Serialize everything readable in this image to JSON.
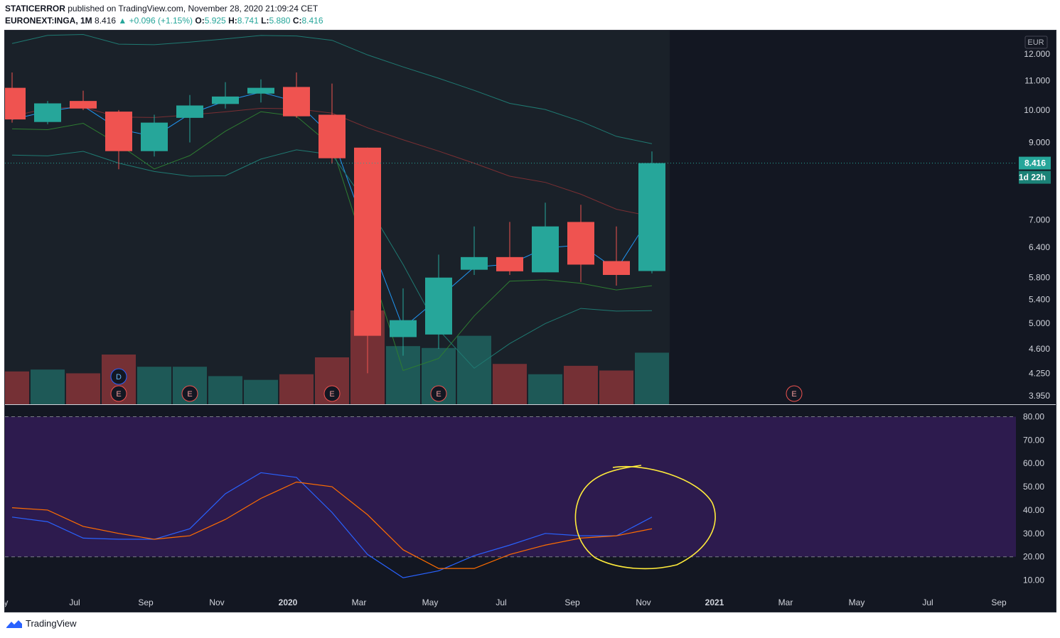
{
  "header": {
    "publisher": "STATICERROR",
    "published_text": "published on TradingView.com, November 28, 2020 21:09:24 CET",
    "symbol": "EURONEXT:INGA, 1M",
    "last": "8.416",
    "change": "▲ +0.096 (+1.15%)",
    "o_label": "O:",
    "o_value": "5.925",
    "h_label": "H:",
    "h_value": "8.741",
    "l_label": "L:",
    "l_value": "5.880",
    "c_label": "C:",
    "c_value": "8.416"
  },
  "price_axis": {
    "currency": "EUR",
    "ticks": [
      "12.000",
      "11.000",
      "10.000",
      "9.000",
      "7.000",
      "6.400",
      "5.800",
      "5.400",
      "5.000",
      "4.600",
      "4.250",
      "3.950"
    ],
    "tick_values": [
      12.0,
      11.0,
      10.0,
      9.0,
      7.0,
      6.4,
      5.8,
      5.4,
      5.0,
      4.6,
      4.25,
      3.95
    ],
    "last_price_label": "8.416",
    "countdown_label": "1d 22h"
  },
  "rsi_axis": {
    "ticks": [
      "80.00",
      "70.00",
      "60.00",
      "50.00",
      "40.00",
      "30.00",
      "20.00",
      "10.00"
    ],
    "tick_values": [
      80,
      70,
      60,
      50,
      40,
      30,
      20,
      10
    ]
  },
  "time_axis": {
    "labels": [
      "ay",
      "Jul",
      "Sep",
      "Nov",
      "2020",
      "Mar",
      "May",
      "Jul",
      "Sep",
      "Nov",
      "2021",
      "Mar",
      "May",
      "Jul",
      "Sep"
    ]
  },
  "event_markers": {
    "earnings": "E",
    "dividend": "D"
  },
  "footer": {
    "brand": "TradingView"
  },
  "colors": {
    "up": "#26a69a",
    "down": "#ef5350",
    "background": "#131722",
    "rsi_band": "#2d1b4e",
    "rsi_line": "#2962ff",
    "rsi_signal": "#ff6d00",
    "annotation": "#ffeb3b"
  },
  "chart_data": [
    {
      "type": "candlestick",
      "scale": "log",
      "currency": "EUR",
      "ylim": [
        3.95,
        12.0
      ],
      "last_price": 8.416,
      "candles": [
        {
          "t": "2019-05",
          "o": 10.75,
          "h": 11.3,
          "l": 9.6,
          "c": 9.7,
          "vol": 0.35
        },
        {
          "t": "2019-06",
          "o": 9.62,
          "h": 10.3,
          "l": 9.55,
          "c": 10.22,
          "vol": 0.37
        },
        {
          "t": "2019-07",
          "o": 10.3,
          "h": 10.65,
          "l": 10.0,
          "c": 10.05,
          "vol": 0.33
        },
        {
          "t": "2019-08",
          "o": 9.95,
          "h": 10.0,
          "l": 8.25,
          "c": 8.75,
          "vol": 0.53
        },
        {
          "t": "2019-09",
          "o": 8.75,
          "h": 9.85,
          "l": 8.6,
          "c": 9.6,
          "vol": 0.4
        },
        {
          "t": "2019-10",
          "o": 9.75,
          "h": 10.5,
          "l": 9.0,
          "c": 10.15,
          "vol": 0.4
        },
        {
          "t": "2019-11",
          "o": 10.2,
          "h": 10.95,
          "l": 10.05,
          "c": 10.45,
          "vol": 0.3
        },
        {
          "t": "2019-12",
          "o": 10.55,
          "h": 11.05,
          "l": 10.25,
          "c": 10.75,
          "vol": 0.26
        },
        {
          "t": "2020-01",
          "o": 10.78,
          "h": 11.3,
          "l": 9.75,
          "c": 9.8,
          "vol": 0.32
        },
        {
          "t": "2020-02",
          "o": 9.85,
          "h": 10.9,
          "l": 8.4,
          "c": 8.55,
          "vol": 0.5
        },
        {
          "t": "2020-03",
          "o": 8.85,
          "h": 8.85,
          "l": 4.25,
          "c": 4.8,
          "vol": 1.0
        },
        {
          "t": "2020-04",
          "o": 4.78,
          "h": 5.6,
          "l": 4.5,
          "c": 5.05,
          "vol": 0.62
        },
        {
          "t": "2020-05",
          "o": 4.82,
          "h": 6.25,
          "l": 4.6,
          "c": 5.8,
          "vol": 0.6
        },
        {
          "t": "2020-06",
          "o": 5.95,
          "h": 6.85,
          "l": 5.85,
          "c": 6.2,
          "vol": 0.73
        },
        {
          "t": "2020-07",
          "o": 6.2,
          "h": 6.95,
          "l": 5.85,
          "c": 5.92,
          "vol": 0.43
        },
        {
          "t": "2020-08",
          "o": 5.9,
          "h": 7.4,
          "l": 5.9,
          "c": 6.85,
          "vol": 0.32
        },
        {
          "t": "2020-09",
          "o": 6.95,
          "h": 7.35,
          "l": 5.72,
          "c": 6.05,
          "vol": 0.41
        },
        {
          "t": "2020-10",
          "o": 6.12,
          "h": 6.85,
          "l": 5.65,
          "c": 5.85,
          "vol": 0.36
        },
        {
          "t": "2020-11",
          "o": 5.925,
          "h": 8.741,
          "l": 5.88,
          "c": 8.416,
          "vol": 0.55
        }
      ]
    },
    {
      "type": "line",
      "indicator": "stochastic RSI",
      "ylim": [
        5,
        85
      ],
      "bands": [
        20,
        80
      ],
      "x": [
        "2019-05",
        "2019-06",
        "2019-07",
        "2019-08",
        "2019-09",
        "2019-10",
        "2019-11",
        "2019-12",
        "2020-01",
        "2020-02",
        "2020-03",
        "2020-04",
        "2020-05",
        "2020-06",
        "2020-07",
        "2020-08",
        "2020-09",
        "2020-10",
        "2020-11"
      ],
      "series": [
        {
          "values": [
            37,
            35,
            28,
            27.5,
            27.5,
            32,
            47,
            56,
            54,
            39,
            21,
            11,
            14,
            20.5,
            25,
            30,
            29,
            29,
            37
          ]
        },
        {
          "values": [
            41,
            40,
            33,
            30,
            27.5,
            29,
            36,
            45,
            52,
            50,
            38,
            23,
            15,
            15,
            21,
            25,
            28,
            29,
            32
          ]
        }
      ]
    }
  ]
}
